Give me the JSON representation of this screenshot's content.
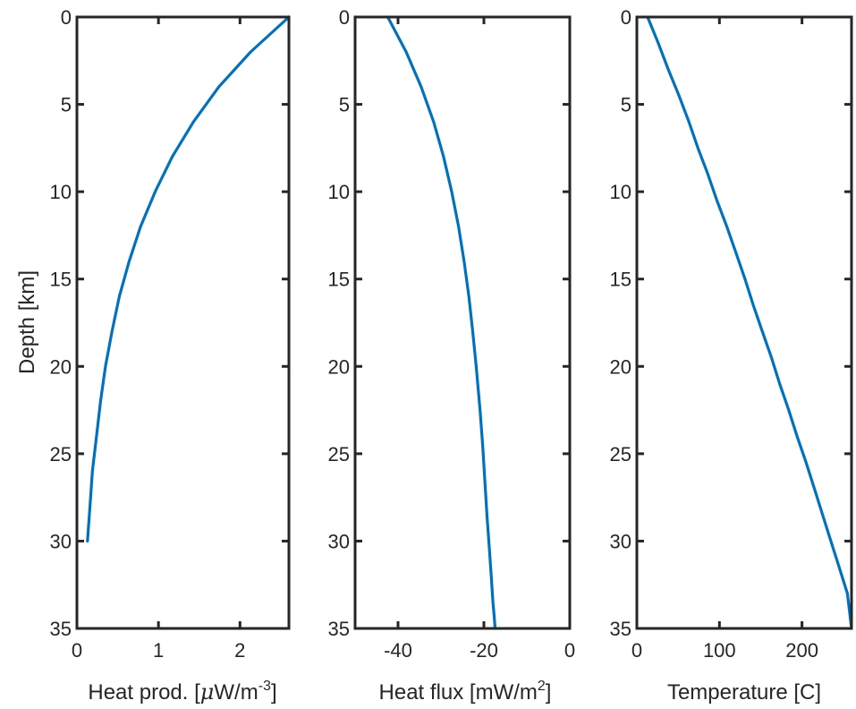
{
  "colors": {
    "line": "#0072BD",
    "axes": "#262626",
    "background": "#ffffff"
  },
  "chart_data": [
    {
      "type": "line",
      "xlabel": "Heat prod. [μW/m-3]",
      "xlabel_parts": {
        "main": "Heat prod. [",
        "mu": "μ",
        "unit": "W/m",
        "sup": "-3",
        "close": "]"
      },
      "ylabel": "Depth [km]",
      "xlim": [
        0,
        2.6
      ],
      "ylim": [
        0,
        35
      ],
      "y_reversed": true,
      "xticks": [
        0,
        1,
        2
      ],
      "xtick_labels": [
        "0",
        "1",
        "2"
      ],
      "yticks": [
        0,
        5,
        10,
        15,
        20,
        25,
        30,
        35
      ],
      "ytick_labels": [
        "0",
        "5",
        "10",
        "15",
        "20",
        "25",
        "30",
        "35"
      ],
      "grid": false,
      "series": [
        {
          "x": [
            2.6,
            2.13,
            1.74,
            1.43,
            1.17,
            0.96,
            0.78,
            0.64,
            0.52,
            0.43,
            0.35,
            0.29,
            0.24,
            0.19,
            0.16,
            0.13
          ],
          "y": [
            0,
            2,
            4,
            6,
            8,
            10,
            12,
            14,
            16,
            18,
            20,
            22,
            24,
            26,
            28,
            30
          ]
        }
      ]
    },
    {
      "type": "line",
      "xlabel": "Heat flux [mW/m2]",
      "xlabel_parts": {
        "main": "Heat flux [mW/m",
        "sup": "2",
        "close": "]"
      },
      "xlim": [
        -50,
        0
      ],
      "ylim": [
        0,
        35
      ],
      "y_reversed": true,
      "xticks": [
        -40,
        -20,
        0
      ],
      "xtick_labels": [
        "-40",
        "-20",
        "0"
      ],
      "yticks": [
        0,
        5,
        10,
        15,
        20,
        25,
        30,
        35
      ],
      "ytick_labels": [
        "0",
        "5",
        "10",
        "15",
        "20",
        "25",
        "30",
        "35"
      ],
      "grid": false,
      "series": [
        {
          "x": [
            -42.4,
            -38.1,
            -34.6,
            -31.7,
            -29.4,
            -27.5,
            -25.9,
            -24.6,
            -23.5,
            -22.6,
            -21.8,
            -20.9,
            -20.3,
            -19.8,
            -19.3,
            -18.7,
            -18.3,
            -17.9,
            -17.6,
            -17.4
          ],
          "y": [
            0,
            2,
            4,
            6,
            8,
            10,
            12,
            14,
            16,
            18,
            20,
            22.5,
            24.5,
            26.5,
            28.5,
            30.5,
            32,
            33.5,
            34.3,
            35
          ]
        }
      ]
    },
    {
      "type": "line",
      "xlabel": "Temperature [C]",
      "xlim": [
        0,
        260
      ],
      "ylim": [
        0,
        35
      ],
      "y_reversed": true,
      "xticks": [
        0,
        100,
        200
      ],
      "xtick_labels": [
        "0",
        "100",
        "200"
      ],
      "yticks": [
        0,
        5,
        10,
        15,
        20,
        25,
        30,
        35
      ],
      "ytick_labels": [
        "0",
        "5",
        "10",
        "15",
        "20",
        "25",
        "30",
        "35"
      ],
      "grid": false,
      "series": [
        {
          "x": [
            13,
            26,
            38,
            51,
            63,
            74,
            86,
            97,
            109,
            120,
            131,
            141,
            152,
            163,
            173,
            184,
            194,
            205,
            215,
            225,
            235,
            245,
            255,
            260
          ],
          "y": [
            0,
            1.5,
            3,
            4.5,
            6,
            7.5,
            9,
            10.5,
            12,
            13.5,
            15,
            16.5,
            18,
            19.5,
            21,
            22.5,
            24,
            25.5,
            27,
            28.5,
            30,
            31.5,
            33,
            35
          ]
        }
      ]
    }
  ]
}
